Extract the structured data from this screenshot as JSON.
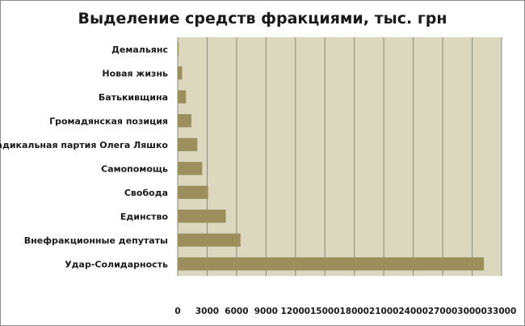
{
  "chart_data": {
    "type": "bar",
    "orientation": "horizontal",
    "title": "Выделение средств фракциями, тыс. грн",
    "xlabel": "",
    "ylabel": "",
    "categories": [
      "Демальянс",
      "Новая жизнь",
      "Батькивщина",
      "Громадянская позиция",
      "Радикальная партия Олега Ляшко",
      "Самопомощь",
      "Свобода",
      "Единство",
      "Внефракционные депутаты",
      "Удар-Солидарность"
    ],
    "values": [
      100,
      450,
      850,
      1400,
      2000,
      2500,
      3100,
      4900,
      6400,
      31200
    ],
    "xlim": [
      0,
      33000
    ],
    "xticks": [
      0,
      3000,
      6000,
      9000,
      12000,
      15000,
      18000,
      21000,
      24000,
      27000,
      30000,
      33000
    ],
    "grid": "vertical",
    "legend": "none",
    "colors": {
      "bar": "#9b8f5d",
      "plot_background": "#dcd8c0",
      "gridline": "#8a8a78"
    }
  }
}
